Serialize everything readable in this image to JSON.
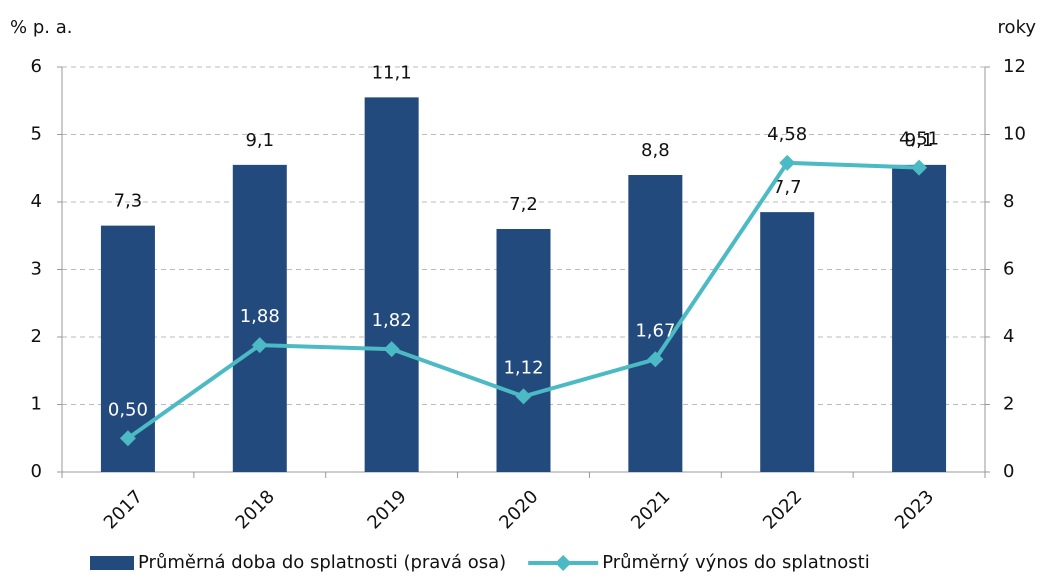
{
  "chart_data": {
    "type": "bar-line",
    "ylabel": "% p. a.",
    "y2label": "roky",
    "categories": [
      "2017",
      "2018",
      "2019",
      "2020",
      "2021",
      "2022",
      "2023"
    ],
    "series": [
      {
        "name": "Průměrná doba do splatnosti (pravá osa)",
        "type": "bar",
        "axis": "y2",
        "color": "#234a7c",
        "values": [
          7.3,
          9.1,
          11.1,
          7.2,
          8.8,
          7.7,
          9.1
        ],
        "value_labels": [
          "7,3",
          "9,1",
          "11,1",
          "7,2",
          "8,8",
          "7,7",
          "9,1"
        ]
      },
      {
        "name": "Průměrný výnos do splatnosti",
        "type": "line",
        "axis": "y",
        "color": "#4bbac4",
        "values": [
          0.5,
          1.88,
          1.82,
          1.12,
          1.67,
          4.58,
          4.51
        ],
        "value_labels": [
          "0,50",
          "1,88",
          "1,82",
          "1,12",
          "1,67",
          "4,58",
          "4,51"
        ]
      }
    ],
    "ylim": [
      0,
      6
    ],
    "yticks": [
      0,
      1,
      2,
      3,
      4,
      5,
      6
    ],
    "y2lim": [
      0,
      12
    ],
    "y2ticks": [
      0,
      2,
      4,
      6,
      8,
      10,
      12
    ],
    "grid": true
  }
}
